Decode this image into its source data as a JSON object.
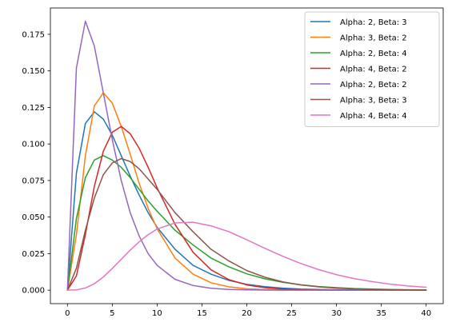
{
  "chart_data": {
    "type": "line",
    "title": "",
    "xlabel": "",
    "ylabel": "",
    "xlim": [
      -1.9,
      41.9
    ],
    "ylim": [
      -0.0092,
      0.193
    ],
    "x_ticks": [
      0,
      5,
      10,
      15,
      20,
      25,
      30,
      35,
      40
    ],
    "x_tick_labels": [
      "0",
      "5",
      "10",
      "15",
      "20",
      "25",
      "30",
      "35",
      "40"
    ],
    "y_ticks": [
      0.0,
      0.025,
      0.05,
      0.075,
      0.1,
      0.125,
      0.15,
      0.175
    ],
    "y_tick_labels": [
      "0.000",
      "0.025",
      "0.050",
      "0.075",
      "0.100",
      "0.125",
      "0.150",
      "0.175"
    ],
    "grid": false,
    "legend_position": "top-right",
    "x": [
      0,
      1,
      2,
      3,
      4,
      5,
      6,
      7,
      8,
      9,
      10,
      12,
      14,
      16,
      18,
      20,
      22,
      24,
      26,
      28,
      30,
      32,
      34,
      36,
      38,
      40
    ],
    "series": [
      {
        "name": "Alpha: 2, Beta: 3",
        "color": "#1f77b4",
        "values": [
          0,
          0.08,
          0.114,
          0.122,
          0.117,
          0.106,
          0.092,
          0.078,
          0.065,
          0.053,
          0.043,
          0.028,
          0.017,
          0.011,
          0.0067,
          0.004,
          0.0024,
          0.0014,
          0.0008,
          0.0005,
          0.0003,
          0.0002,
          0.0001,
          0.0001,
          0.0,
          0.0
        ]
      },
      {
        "name": "Alpha: 3, Beta: 2",
        "color": "#ff7f0e",
        "values": [
          0,
          0.038,
          0.092,
          0.126,
          0.135,
          0.128,
          0.112,
          0.093,
          0.073,
          0.056,
          0.042,
          0.022,
          0.011,
          0.0051,
          0.0023,
          0.001,
          0.0004,
          0.0002,
          0.0001,
          0.0,
          0.0,
          0.0,
          0.0,
          0.0,
          0.0,
          0.0
        ]
      },
      {
        "name": "Alpha: 2, Beta: 4",
        "color": "#2ca02c",
        "values": [
          0,
          0.049,
          0.077,
          0.089,
          0.092,
          0.089,
          0.084,
          0.077,
          0.069,
          0.061,
          0.054,
          0.041,
          0.031,
          0.022,
          0.016,
          0.0112,
          0.0078,
          0.0054,
          0.0037,
          0.0025,
          0.0017,
          0.0011,
          0.0008,
          0.0005,
          0.0003,
          0.0002
        ]
      },
      {
        "name": "Alpha: 4, Beta: 2",
        "color": "#d62728",
        "values": [
          0,
          0.0098,
          0.038,
          0.071,
          0.095,
          0.108,
          0.112,
          0.107,
          0.097,
          0.084,
          0.07,
          0.045,
          0.026,
          0.014,
          0.0072,
          0.0036,
          0.0017,
          0.0008,
          0.0003,
          0.0001,
          0.0,
          0.0,
          0.0,
          0.0,
          0.0,
          0.0
        ]
      },
      {
        "name": "Alpha: 2, Beta: 2",
        "color": "#9467bd",
        "values": [
          0,
          0.152,
          0.184,
          0.167,
          0.135,
          0.103,
          0.075,
          0.053,
          0.037,
          0.025,
          0.017,
          0.0074,
          0.0032,
          0.0013,
          0.0005,
          0.0002,
          0.0001,
          0.0,
          0.0,
          0.0,
          0.0,
          0.0,
          0.0,
          0.0,
          0.0,
          0.0
        ]
      },
      {
        "name": "Alpha: 3, Beta: 3",
        "color": "#8c564b",
        "values": [
          0,
          0.015,
          0.041,
          0.063,
          0.079,
          0.087,
          0.09,
          0.088,
          0.083,
          0.076,
          0.069,
          0.053,
          0.04,
          0.028,
          0.02,
          0.0134,
          0.0089,
          0.0057,
          0.0036,
          0.0023,
          0.0014,
          0.0009,
          0.0005,
          0.0003,
          0.0002,
          0.0001
        ]
      },
      {
        "name": "Alpha: 4, Beta: 4",
        "color": "#e377c2",
        "values": [
          0,
          0.0002,
          0.0015,
          0.0044,
          0.009,
          0.0149,
          0.0211,
          0.0274,
          0.0331,
          0.038,
          0.0418,
          0.046,
          0.0465,
          0.044,
          0.04,
          0.0345,
          0.0287,
          0.0232,
          0.0183,
          0.0141,
          0.0106,
          0.0079,
          0.0058,
          0.0041,
          0.0029,
          0.002
        ]
      }
    ]
  }
}
